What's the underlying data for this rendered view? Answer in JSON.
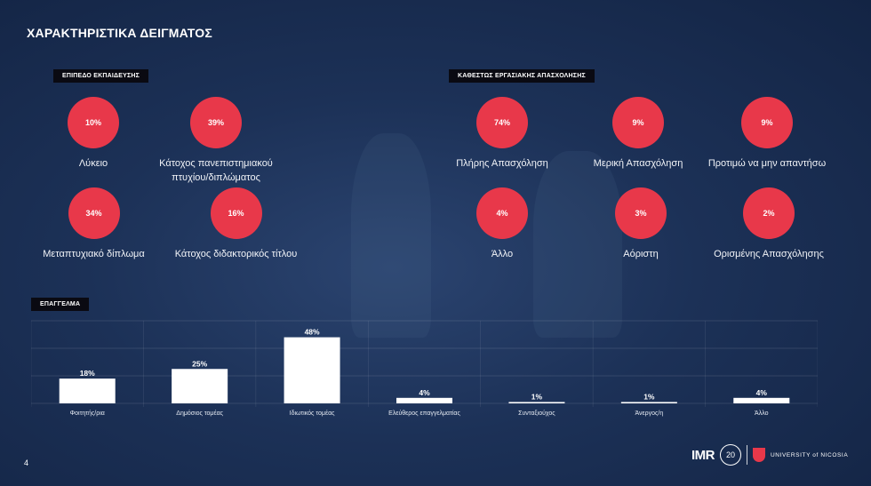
{
  "page": {
    "title": "ΧΑΡΑΚΤΗΡΙΣΤΙΚΑ ΔΕΙΓΜΑΤΟΣ",
    "number": "4"
  },
  "education": {
    "label": "ΕΠΙΠΕΔΟ ΕΚΠΑΙΔΕΥΣΗΣ",
    "items": [
      {
        "value": "10%",
        "label": "Λύκειο"
      },
      {
        "value": "39%",
        "label": "Κάτοχος πανεπιστημιακού πτυχίου/διπλώματος"
      },
      {
        "value": "34%",
        "label": "Μεταπτυχιακό δίπλωμα"
      },
      {
        "value": "16%",
        "label": "Κάτοχος διδακτορικός τίτλου"
      }
    ]
  },
  "employment": {
    "label": "ΚΑΘΕΣΤΩΣ ΕΡΓΑΣΙΑΚΗΣ ΑΠΑΣΧΟΛΗΣΗΣ",
    "items": [
      {
        "value": "74%",
        "label": "Πλήρης Απασχόληση"
      },
      {
        "value": "9%",
        "label": "Μερική Απασχόληση"
      },
      {
        "value": "9%",
        "label": "Προτιμώ να μην απαντήσω"
      },
      {
        "value": "4%",
        "label": "Άλλο"
      },
      {
        "value": "3%",
        "label": "Αόριστη"
      },
      {
        "value": "2%",
        "label": "Ορισμένης Απασχόλησης"
      }
    ]
  },
  "profession": {
    "label": "ΕΠΑΓΓΕΛΜΑ"
  },
  "chart_data": {
    "type": "bar",
    "categories": [
      "Φοιτητής/ρια",
      "Δημόσιος τομέας",
      "Ιδιωτικός τομέας",
      "Ελεύθερος επαγγελματίας",
      "Συνταξιούχος",
      "Άνεργος/η",
      "Άλλο"
    ],
    "values": [
      18,
      25,
      48,
      4,
      1,
      1,
      4
    ],
    "value_labels": [
      "18%",
      "25%",
      "48%",
      "4%",
      "1%",
      "1%",
      "4%"
    ],
    "ylim": [
      0,
      60
    ],
    "grid": true
  },
  "logos": {
    "imr": "IMR",
    "anniversary": "20",
    "university": "UNIVERSITY of NICOSIA"
  },
  "colors": {
    "accent": "#e8384a",
    "background": "#1c3157",
    "label_bg": "#0a0a12"
  }
}
